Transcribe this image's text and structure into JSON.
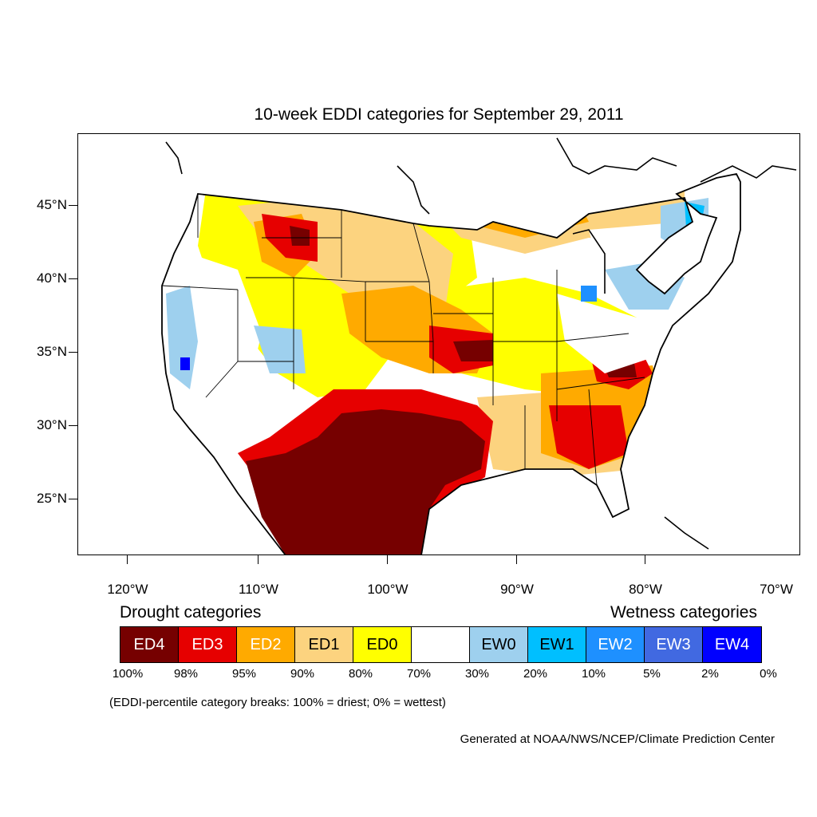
{
  "title": "10-week EDDI categories for September 29, 2011",
  "axes": {
    "lat_labels": [
      "45°N",
      "40°N",
      "35°N",
      "30°N",
      "25°N"
    ],
    "lon_labels": [
      "120°W",
      "110°W",
      "100°W",
      "90°W",
      "80°W",
      "70°W"
    ]
  },
  "legend": {
    "drought_heading": "Drought categories",
    "wetness_heading": "Wetness categories",
    "categories": [
      {
        "label": "ED4",
        "color": "#760000",
        "text_color": "#ffffff"
      },
      {
        "label": "ED3",
        "color": "#e60000",
        "text_color": "#ffffff"
      },
      {
        "label": "ED2",
        "color": "#ffaa00",
        "text_color": "#ffffff"
      },
      {
        "label": "ED1",
        "color": "#fcd37f",
        "text_color": "#000000"
      },
      {
        "label": "ED0",
        "color": "#ffff00",
        "text_color": "#000000"
      },
      {
        "label": "",
        "color": "#ffffff",
        "text_color": "#000000"
      },
      {
        "label": "EW0",
        "color": "#9ed0ee",
        "text_color": "#000000"
      },
      {
        "label": "EW1",
        "color": "#00bfff",
        "text_color": "#000000"
      },
      {
        "label": "EW2",
        "color": "#1e90ff",
        "text_color": "#ffffff"
      },
      {
        "label": "EW3",
        "color": "#4169e1",
        "text_color": "#ffffff"
      },
      {
        "label": "EW4",
        "color": "#0000ff",
        "text_color": "#ffffff"
      }
    ],
    "breaks": [
      "100%",
      "98%",
      "95%",
      "90%",
      "80%",
      "70%",
      "30%",
      "20%",
      "10%",
      "5%",
      "2%",
      "0%"
    ]
  },
  "note": "(EDDI-percentile category breaks: 100% = driest; 0% = wettest)",
  "credit": "Generated at NOAA/NWS/NCEP/Climate Prediction Center"
}
